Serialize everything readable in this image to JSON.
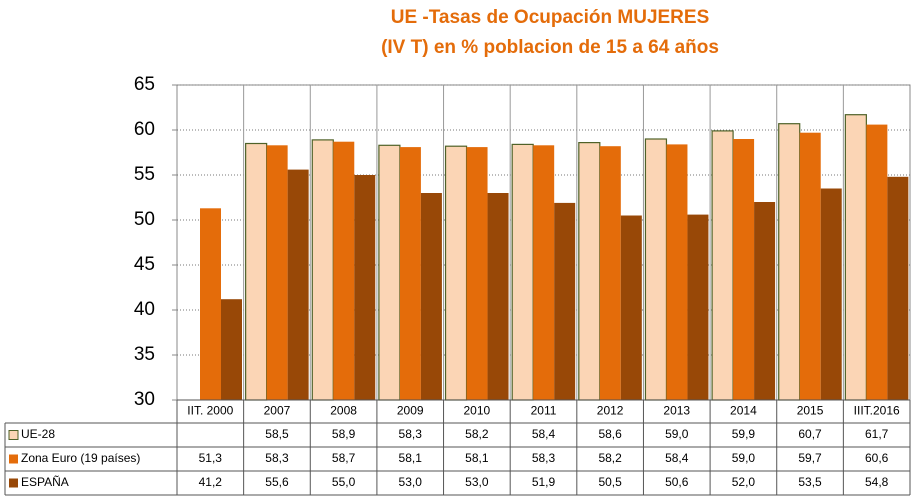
{
  "chart_data": {
    "type": "bar",
    "title": "UE -Tasas de Ocupación MUJERES",
    "subtitle": "(IV  T) en % poblacion de 15 a 64 años",
    "categories": [
      "IIT. 2000",
      "2007",
      "2008",
      "2009",
      "2010",
      "2011",
      "2012",
      "2013",
      "2014",
      "2015",
      "IIIT.2016"
    ],
    "series": [
      {
        "name": "UE-28",
        "color": "#fbd5b5",
        "values": [
          null,
          58.5,
          58.9,
          58.3,
          58.2,
          58.4,
          58.6,
          59.0,
          59.9,
          60.7,
          61.7
        ],
        "value_labels": [
          null,
          "58,5",
          "58,9",
          "58,3",
          "58,2",
          "58,4",
          "58,6",
          "59,0",
          "59,9",
          "60,7",
          "61,7"
        ]
      },
      {
        "name": "Zona Euro (19 países)",
        "color": "#e46c0a",
        "values": [
          51.3,
          58.3,
          58.7,
          58.1,
          58.1,
          58.3,
          58.2,
          58.4,
          59.0,
          59.7,
          60.6
        ],
        "value_labels": [
          "51,3",
          "58,3",
          "58,7",
          "58,1",
          "58,1",
          "58,3",
          "58,2",
          "58,4",
          "59,0",
          "59,7",
          "60,6"
        ]
      },
      {
        "name": "ESPAÑA",
        "color": "#984807",
        "values": [
          41.2,
          55.6,
          55.0,
          53.0,
          53.0,
          51.9,
          50.5,
          50.6,
          52.0,
          53.5,
          54.8
        ],
        "value_labels": [
          "41,2",
          "55,6",
          "55,0",
          "53,0",
          "53,0",
          "51,9",
          "50,5",
          "50,6",
          "52,0",
          "53,5",
          "54,8"
        ]
      }
    ],
    "ylim": [
      30,
      65
    ],
    "yticks": [
      30,
      35,
      40,
      45,
      50,
      55,
      60,
      65
    ],
    "grid": true
  }
}
